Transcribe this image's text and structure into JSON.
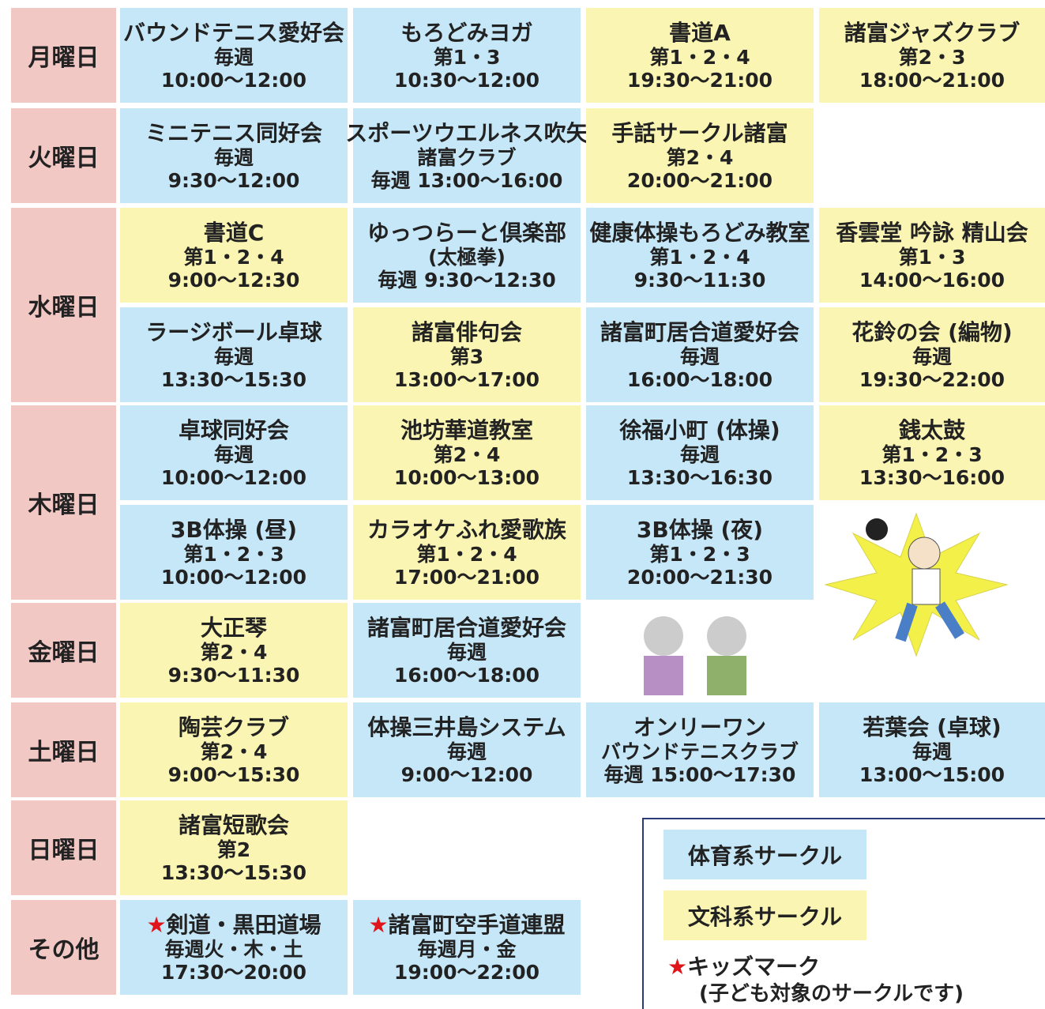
{
  "days": [
    {
      "label": "月曜日",
      "rows": [
        [
          {
            "lines": [
              "バウンドテニス愛好会",
              "毎週",
              "10:00～12:00"
            ],
            "color": "#c6e7f8"
          },
          {
            "lines": [
              "もろどみヨガ",
              "第1・3",
              "10:30～12:00"
            ],
            "color": "#c6e7f8"
          },
          {
            "lines": [
              "書道A",
              "第1・2・4",
              "19:30～21:00"
            ],
            "color": "#faf5b2"
          },
          {
            "lines": [
              "諸富ジャズクラブ",
              "第2・3",
              "18:00～21:00"
            ],
            "color": "#faf5b2"
          }
        ]
      ]
    },
    {
      "label": "火曜日",
      "rows": [
        [
          {
            "lines": [
              "ミニテニス同好会",
              "毎週",
              "9:30～12:00"
            ],
            "color": "#c6e7f8"
          },
          {
            "lines": [
              "スポーツウエルネス吹矢",
              "諸富クラブ",
              "毎週 13:00～16:00"
            ],
            "color": "#c6e7f8"
          },
          {
            "lines": [
              "手話サークル諸富",
              "第2・4",
              "20:00～21:00"
            ],
            "color": "#faf5b2"
          }
        ]
      ]
    },
    {
      "label": "水曜日",
      "rows": [
        [
          {
            "lines": [
              "書道C",
              "第1・2・4",
              "9:00～12:30"
            ],
            "color": "#faf5b2"
          },
          {
            "lines": [
              "ゆっつらーと倶楽部",
              "(太極拳)",
              "毎週 9:30～12:30"
            ],
            "color": "#c6e7f8"
          },
          {
            "lines": [
              "健康体操もろどみ教室",
              "第1・2・4",
              "9:30～11:30"
            ],
            "color": "#c6e7f8"
          },
          {
            "lines": [
              "香雲堂 吟詠 精山会",
              "第1・3",
              "14:00～16:00"
            ],
            "color": "#faf5b2"
          }
        ],
        [
          {
            "lines": [
              "ラージボール卓球",
              "毎週",
              "13:30～15:30"
            ],
            "color": "#c6e7f8"
          },
          {
            "lines": [
              "諸富俳句会",
              "第3",
              "13:00～17:00"
            ],
            "color": "#faf5b2"
          },
          {
            "lines": [
              "諸富町居合道愛好会",
              "毎週",
              "16:00～18:00"
            ],
            "color": "#c6e7f8"
          },
          {
            "lines": [
              "花鈴の会 (編物)",
              "毎週",
              "19:30～22:00"
            ],
            "color": "#faf5b2"
          }
        ]
      ]
    },
    {
      "label": "木曜日",
      "rows": [
        [
          {
            "lines": [
              "卓球同好会",
              "毎週",
              "10:00～12:00"
            ],
            "color": "#c6e7f8"
          },
          {
            "lines": [
              "池坊華道教室",
              "第2・4",
              "10:00～13:00"
            ],
            "color": "#faf5b2"
          },
          {
            "lines": [
              "徐福小町 (体操)",
              "毎週",
              "13:30～16:30"
            ],
            "color": "#c6e7f8"
          },
          {
            "lines": [
              "銭太鼓",
              "第1・2・3",
              "13:30～16:00"
            ],
            "color": "#faf5b2"
          }
        ],
        [
          {
            "lines": [
              "3B体操 (昼)",
              "第1・2・3",
              "10:00～12:00"
            ],
            "color": "#c6e7f8"
          },
          {
            "lines": [
              "カラオケふれ愛歌族",
              "第1・2・4",
              "17:00～21:00"
            ],
            "color": "#faf5b2"
          },
          {
            "lines": [
              "3B体操 (夜)",
              "第1・2・3",
              "20:00～21:30"
            ],
            "color": "#c6e7f8"
          }
        ]
      ]
    },
    {
      "label": "金曜日",
      "rows": [
        [
          {
            "lines": [
              "大正琴",
              "第2・4",
              "9:30～11:30"
            ],
            "color": "#faf5b2"
          },
          {
            "lines": [
              "諸富町居合道愛好会",
              "毎週",
              "16:00～18:00"
            ],
            "color": "#c6e7f8"
          }
        ]
      ]
    },
    {
      "label": "土曜日",
      "rows": [
        [
          {
            "lines": [
              "陶芸クラブ",
              "第2・4",
              "9:00～15:30"
            ],
            "color": "#faf5b2"
          },
          {
            "lines": [
              "体操三井島システム",
              "毎週",
              "9:00～12:00"
            ],
            "color": "#c6e7f8"
          },
          {
            "lines": [
              "オンリーワン",
              "バウンドテニスクラブ",
              "毎週 15:00～17:30"
            ],
            "color": "#c6e7f8"
          },
          {
            "lines": [
              "若葉会 (卓球)",
              "毎週",
              "13:00～15:00"
            ],
            "color": "#c6e7f8"
          }
        ]
      ]
    },
    {
      "label": "日曜日",
      "rows": [
        [
          {
            "lines": [
              "諸富短歌会",
              "第2",
              "13:30～15:30"
            ],
            "color": "#faf5b2"
          }
        ]
      ]
    },
    {
      "label": "その他",
      "rows": [
        [
          {
            "lines": [
              "★剣道・黒田道場",
              "毎週火・木・土",
              "17:30～20:00"
            ],
            "color": "#c6e7f8"
          },
          {
            "lines": [
              "★諸富町空手道連盟",
              "毎週月・金",
              "19:00～22:00"
            ],
            "color": "#c6e7f8"
          }
        ]
      ]
    }
  ],
  "legend": {
    "items": [
      {
        "label": "体育系サークル",
        "color": "#c6e7f8"
      },
      {
        "label": "文科系サークル",
        "color": "#faf5b2"
      }
    ],
    "kids": "★キッズマーク",
    "kids_note": "(子ども対象のサークルです)"
  }
}
